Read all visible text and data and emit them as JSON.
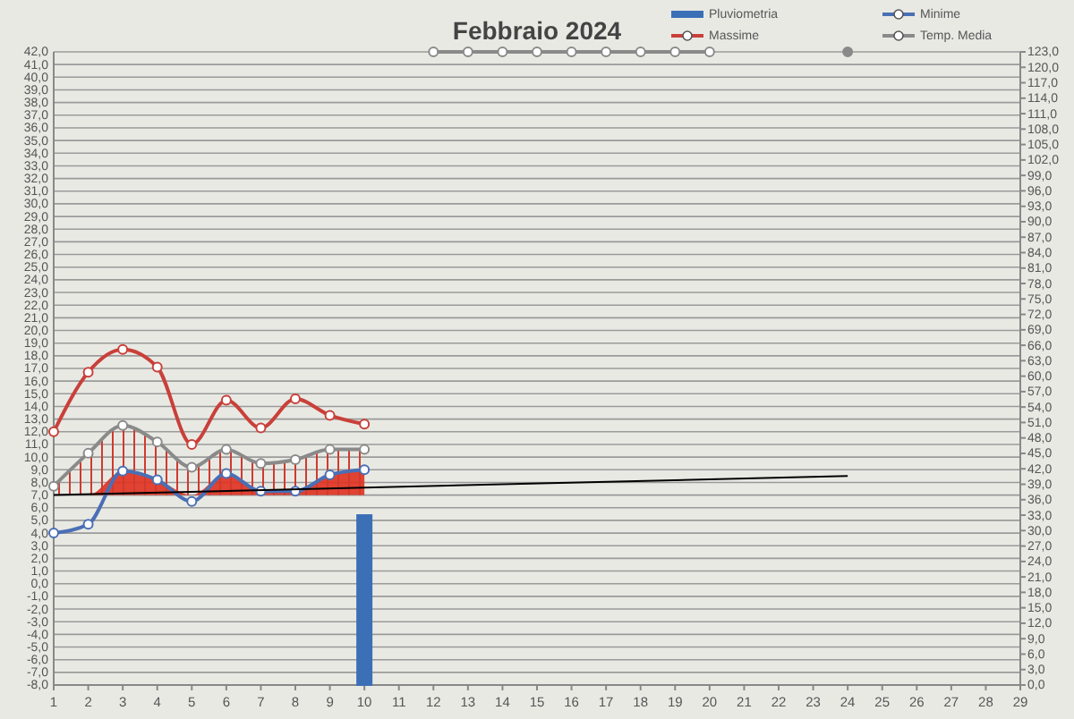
{
  "chart_data": {
    "type": "line",
    "title": "Febbraio 2024",
    "xlim": [
      1,
      29
    ],
    "xticks": [
      1,
      2,
      3,
      4,
      5,
      6,
      7,
      8,
      9,
      10,
      11,
      12,
      13,
      14,
      15,
      16,
      17,
      18,
      19,
      20,
      21,
      22,
      23,
      24,
      25,
      26,
      27,
      28,
      29
    ],
    "ylim": [
      -8,
      42
    ],
    "yticks": [
      {
        "value": -8,
        "label": "-8,0"
      },
      {
        "value": -7,
        "label": "-7,0"
      },
      {
        "value": -6,
        "label": "-6,0"
      },
      {
        "value": -5,
        "label": "-5,0"
      },
      {
        "value": -4,
        "label": "-4,0"
      },
      {
        "value": -3,
        "label": "-3,0"
      },
      {
        "value": -2,
        "label": "-2,0"
      },
      {
        "value": -1,
        "label": "-1,0"
      },
      {
        "value": 0,
        "label": "0,0"
      },
      {
        "value": 1,
        "label": "1,0"
      },
      {
        "value": 2,
        "label": "2,0"
      },
      {
        "value": 3,
        "label": "3,0"
      },
      {
        "value": 4,
        "label": "4,0"
      },
      {
        "value": 5,
        "label": "5,0"
      },
      {
        "value": 6,
        "label": "6,0"
      },
      {
        "value": 7,
        "label": "7,0"
      },
      {
        "value": 8,
        "label": "8,0"
      },
      {
        "value": 9,
        "label": "9,0"
      },
      {
        "value": 10,
        "label": "10,0"
      },
      {
        "value": 11,
        "label": "11,0"
      },
      {
        "value": 12,
        "label": "12,0"
      },
      {
        "value": 13,
        "label": "13,0"
      },
      {
        "value": 14,
        "label": "14,0"
      },
      {
        "value": 15,
        "label": "15,0"
      },
      {
        "value": 16,
        "label": "16,0"
      },
      {
        "value": 17,
        "label": "17,0"
      },
      {
        "value": 18,
        "label": "18,0"
      },
      {
        "value": 19,
        "label": "19,0"
      },
      {
        "value": 20,
        "label": "20,0"
      },
      {
        "value": 21,
        "label": "21,0"
      },
      {
        "value": 22,
        "label": "22,0"
      },
      {
        "value": 23,
        "label": "23,0"
      },
      {
        "value": 24,
        "label": "24,0"
      },
      {
        "value": 25,
        "label": "25,0"
      },
      {
        "value": 26,
        "label": "26,0"
      },
      {
        "value": 27,
        "label": "27,0"
      },
      {
        "value": 28,
        "label": "28,0"
      },
      {
        "value": 29,
        "label": "29,0"
      },
      {
        "value": 30,
        "label": "30,0"
      },
      {
        "value": 31,
        "label": "31,0"
      },
      {
        "value": 32,
        "label": "32,0"
      },
      {
        "value": 33,
        "label": "33,0"
      },
      {
        "value": 34,
        "label": "34,0"
      },
      {
        "value": 35,
        "label": "35,0"
      },
      {
        "value": 36,
        "label": "36,0"
      },
      {
        "value": 37,
        "label": "37,0"
      },
      {
        "value": 38,
        "label": "38,0"
      },
      {
        "value": 39,
        "label": "39,0"
      },
      {
        "value": 40,
        "label": "40,0"
      },
      {
        "value": 41,
        "label": "41,0"
      },
      {
        "value": 42,
        "label": "42,0"
      }
    ],
    "y2lim": [
      0,
      123
    ],
    "y2ticks": [
      {
        "value": 0,
        "label": "0,0"
      },
      {
        "value": 3,
        "label": "3,0"
      },
      {
        "value": 6,
        "label": "6,0"
      },
      {
        "value": 9,
        "label": "9,0"
      },
      {
        "value": 12,
        "label": "12,0"
      },
      {
        "value": 15,
        "label": "15,0"
      },
      {
        "value": 18,
        "label": "18,0"
      },
      {
        "value": 21,
        "label": "21,0"
      },
      {
        "value": 24,
        "label": "24,0"
      },
      {
        "value": 27,
        "label": "27,0"
      },
      {
        "value": 30,
        "label": "30,0"
      },
      {
        "value": 33,
        "label": "33,0"
      },
      {
        "value": 36,
        "label": "36,0"
      },
      {
        "value": 39,
        "label": "39,0"
      },
      {
        "value": 42,
        "label": "42,0"
      },
      {
        "value": 45,
        "label": "45,0"
      },
      {
        "value": 48,
        "label": "48,0"
      },
      {
        "value": 51,
        "label": "51,0"
      },
      {
        "value": 54,
        "label": "54,0"
      },
      {
        "value": 57,
        "label": "57,0"
      },
      {
        "value": 60,
        "label": "60,0"
      },
      {
        "value": 63,
        "label": "63,0"
      },
      {
        "value": 66,
        "label": "66,0"
      },
      {
        "value": 69,
        "label": "69,0"
      },
      {
        "value": 72,
        "label": "72,0"
      },
      {
        "value": 75,
        "label": "75,0"
      },
      {
        "value": 78,
        "label": "78,0"
      },
      {
        "value": 81,
        "label": "81,0"
      },
      {
        "value": 84,
        "label": "84,0"
      },
      {
        "value": 87,
        "label": "87,0"
      },
      {
        "value": 90,
        "label": "90,0"
      },
      {
        "value": 93,
        "label": "93,0"
      },
      {
        "value": 96,
        "label": "96,0"
      },
      {
        "value": 99,
        "label": "99,0"
      },
      {
        "value": 102,
        "label": "102,0"
      },
      {
        "value": 105,
        "label": "105,0"
      },
      {
        "value": 108,
        "label": "108,0"
      },
      {
        "value": 111,
        "label": "111,0"
      },
      {
        "value": 114,
        "label": "114,0"
      },
      {
        "value": 117,
        "label": "117,0"
      },
      {
        "value": 120,
        "label": "120,0"
      },
      {
        "value": 123,
        "label": "123,0"
      }
    ],
    "grid": "y",
    "legend": "top right",
    "marker": "circle",
    "series": [
      {
        "name": "Pluviometria",
        "type": "bar",
        "axis": "y2",
        "color": "#3b6fb6",
        "x": [
          10
        ],
        "values": [
          33
        ]
      },
      {
        "name": "Minime",
        "color": "#4a6fb5",
        "x": [
          1,
          2,
          3,
          4,
          5,
          6,
          7,
          8,
          9,
          10
        ],
        "values": [
          4.0,
          4.7,
          8.9,
          8.2,
          6.5,
          8.7,
          7.3,
          7.3,
          8.6,
          9.0
        ],
        "lower": [
          7.0,
          7.0,
          7.0,
          7.0,
          7.0,
          7.0,
          7.0,
          7.0,
          7.0,
          7.0
        ],
        "upper": [
          7.0,
          7.0,
          8.9,
          8.2,
          7.0,
          8.7,
          7.3,
          7.3,
          8.6,
          9.0
        ]
      },
      {
        "name": "Massime",
        "color": "#c9403a",
        "x": [
          1,
          2,
          3,
          4,
          5,
          6,
          7,
          8,
          9,
          10
        ],
        "values": [
          12.0,
          16.7,
          18.5,
          17.1,
          11.0,
          14.5,
          12.3,
          14.6,
          13.3,
          12.6
        ]
      },
      {
        "name": "Temp. Media",
        "color": "#8a8a8a",
        "x": [
          1,
          2,
          3,
          4,
          5,
          6,
          7,
          8,
          9,
          10,
          11,
          12,
          13,
          14,
          15,
          16,
          17,
          18,
          19,
          20,
          21,
          22,
          23,
          24
        ],
        "values": [
          7.7,
          10.3,
          12.5,
          11.2,
          9.2,
          10.6,
          9.5,
          9.8,
          10.6,
          10.6,
          null,
          42,
          42,
          42,
          42,
          42,
          42,
          42,
          42,
          42,
          null,
          null,
          null,
          42
        ],
        "lower": [
          7.0,
          7.0,
          7.0,
          7.0,
          7.0,
          7.0,
          7.0,
          7.0,
          7.0,
          7.0,
          null,
          null,
          null,
          null,
          null,
          null,
          null,
          null,
          null,
          null,
          null,
          null,
          null,
          null
        ],
        "upper": [
          7.7,
          10.3,
          12.5,
          11.2,
          9.2,
          10.6,
          9.5,
          9.8,
          10.6,
          10.6,
          null,
          null,
          null,
          null,
          null,
          null,
          null,
          null,
          null,
          null,
          null,
          null,
          null,
          null
        ]
      },
      {
        "color": "#000000",
        "marker": "none",
        "x": [
          1,
          24
        ],
        "values": [
          7.0,
          8.5
        ]
      }
    ]
  }
}
